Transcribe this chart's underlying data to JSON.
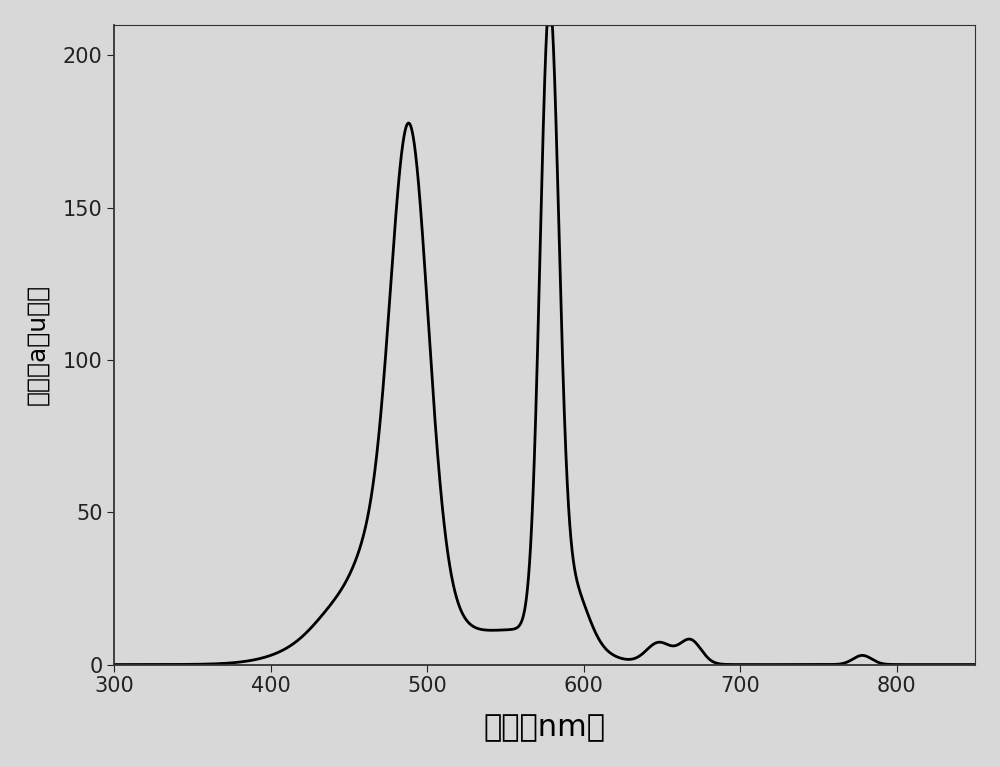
{
  "title": "",
  "xlabel": "波长（nm）",
  "ylabel": "强度（a．u．）",
  "xlim": [
    300,
    850
  ],
  "ylim": [
    0,
    210
  ],
  "xticks": [
    300,
    400,
    500,
    600,
    700,
    800
  ],
  "yticks": [
    0,
    50,
    100,
    150,
    200
  ],
  "line_color": "#000000",
  "line_width": 2.0,
  "background_color": "#d8d8d8",
  "plot_bg_color": "#d8d8d8",
  "xlabel_fontsize": 22,
  "ylabel_fontsize": 18,
  "tick_fontsize": 15
}
